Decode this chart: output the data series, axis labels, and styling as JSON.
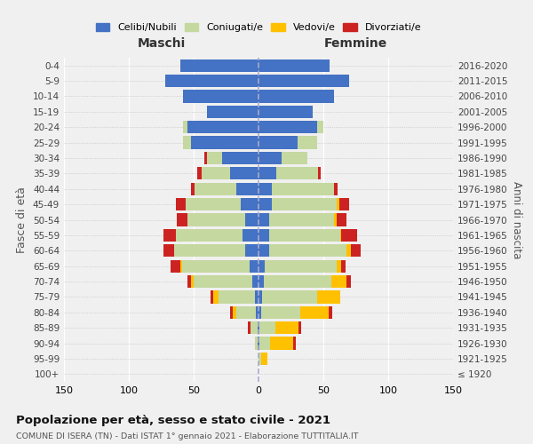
{
  "age_groups": [
    "0-4",
    "5-9",
    "10-14",
    "15-19",
    "20-24",
    "25-29",
    "30-34",
    "35-39",
    "40-44",
    "45-49",
    "50-54",
    "55-59",
    "60-64",
    "65-69",
    "70-74",
    "75-79",
    "80-84",
    "85-89",
    "90-94",
    "95-99",
    "100+"
  ],
  "birth_years": [
    "2016-2020",
    "2011-2015",
    "2006-2010",
    "2001-2005",
    "1996-2000",
    "1991-1995",
    "1986-1990",
    "1981-1985",
    "1976-1980",
    "1971-1975",
    "1966-1970",
    "1961-1965",
    "1956-1960",
    "1951-1955",
    "1946-1950",
    "1941-1945",
    "1936-1940",
    "1931-1935",
    "1926-1930",
    "1921-1925",
    "≤ 1920"
  ],
  "males": {
    "celibi": [
      60,
      72,
      58,
      40,
      55,
      52,
      28,
      22,
      17,
      14,
      10,
      12,
      10,
      7,
      5,
      3,
      2,
      1,
      1,
      0,
      0
    ],
    "coniugati": [
      0,
      0,
      0,
      0,
      3,
      6,
      12,
      22,
      32,
      42,
      45,
      52,
      55,
      52,
      45,
      28,
      15,
      5,
      2,
      0,
      0
    ],
    "vedovi": [
      0,
      0,
      0,
      0,
      0,
      0,
      0,
      0,
      0,
      0,
      0,
      0,
      0,
      1,
      2,
      4,
      3,
      0,
      0,
      0,
      0
    ],
    "divorziati": [
      0,
      0,
      0,
      0,
      0,
      0,
      2,
      3,
      3,
      8,
      8,
      9,
      8,
      8,
      3,
      2,
      2,
      2,
      0,
      0,
      0
    ]
  },
  "females": {
    "nubili": [
      55,
      70,
      58,
      42,
      45,
      30,
      18,
      14,
      10,
      10,
      8,
      8,
      8,
      5,
      4,
      3,
      2,
      1,
      1,
      0,
      0
    ],
    "coniugate": [
      0,
      0,
      0,
      0,
      5,
      15,
      20,
      32,
      48,
      50,
      50,
      55,
      60,
      55,
      52,
      42,
      30,
      12,
      8,
      2,
      0
    ],
    "vedove": [
      0,
      0,
      0,
      0,
      0,
      0,
      0,
      0,
      0,
      2,
      2,
      1,
      3,
      4,
      12,
      18,
      22,
      18,
      18,
      5,
      0
    ],
    "divorziate": [
      0,
      0,
      0,
      0,
      0,
      0,
      0,
      2,
      3,
      8,
      8,
      12,
      8,
      3,
      3,
      0,
      3,
      2,
      2,
      0,
      0
    ]
  },
  "colors": {
    "celibi": "#4472c4",
    "coniugati": "#c5d8a0",
    "vedovi": "#ffc000",
    "divorziati": "#cc2222"
  },
  "title": "Popolazione per età, sesso e stato civile - 2021",
  "subtitle": "COMUNE DI ISERA (TN) - Dati ISTAT 1° gennaio 2021 - Elaborazione TUTTITALIA.IT",
  "xlabel_left": "Maschi",
  "xlabel_right": "Femmine",
  "ylabel_left": "Fasce di età",
  "ylabel_right": "Anni di nascita",
  "xlim": 150,
  "legend_labels": [
    "Celibi/Nubili",
    "Coniugati/e",
    "Vedovi/e",
    "Divorziati/e"
  ],
  "background_color": "#f0f0f0"
}
